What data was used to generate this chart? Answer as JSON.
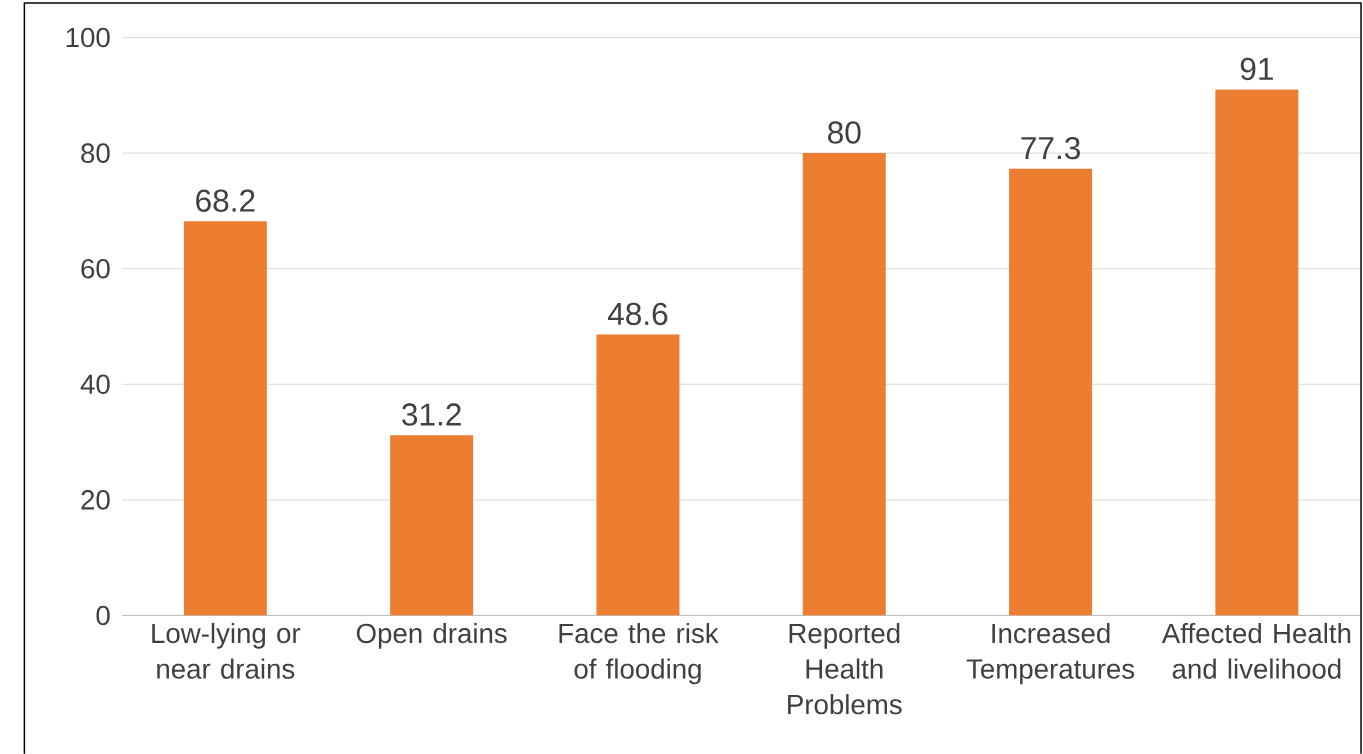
{
  "chart_data": {
    "type": "bar",
    "categories": [
      "Low-lying or near drains",
      "Open drains",
      "Face the risk of flooding",
      "Reported Health Problems",
      "Increased Temperatures",
      "Affected Health and livelihood"
    ],
    "values": [
      68.2,
      31.2,
      48.6,
      80,
      77.3,
      91
    ],
    "color": "#ed7d31",
    "ylim": [
      0,
      100
    ],
    "yticks": [
      0,
      20,
      40,
      60,
      80,
      100
    ],
    "grid": "y",
    "data_labels": true
  }
}
